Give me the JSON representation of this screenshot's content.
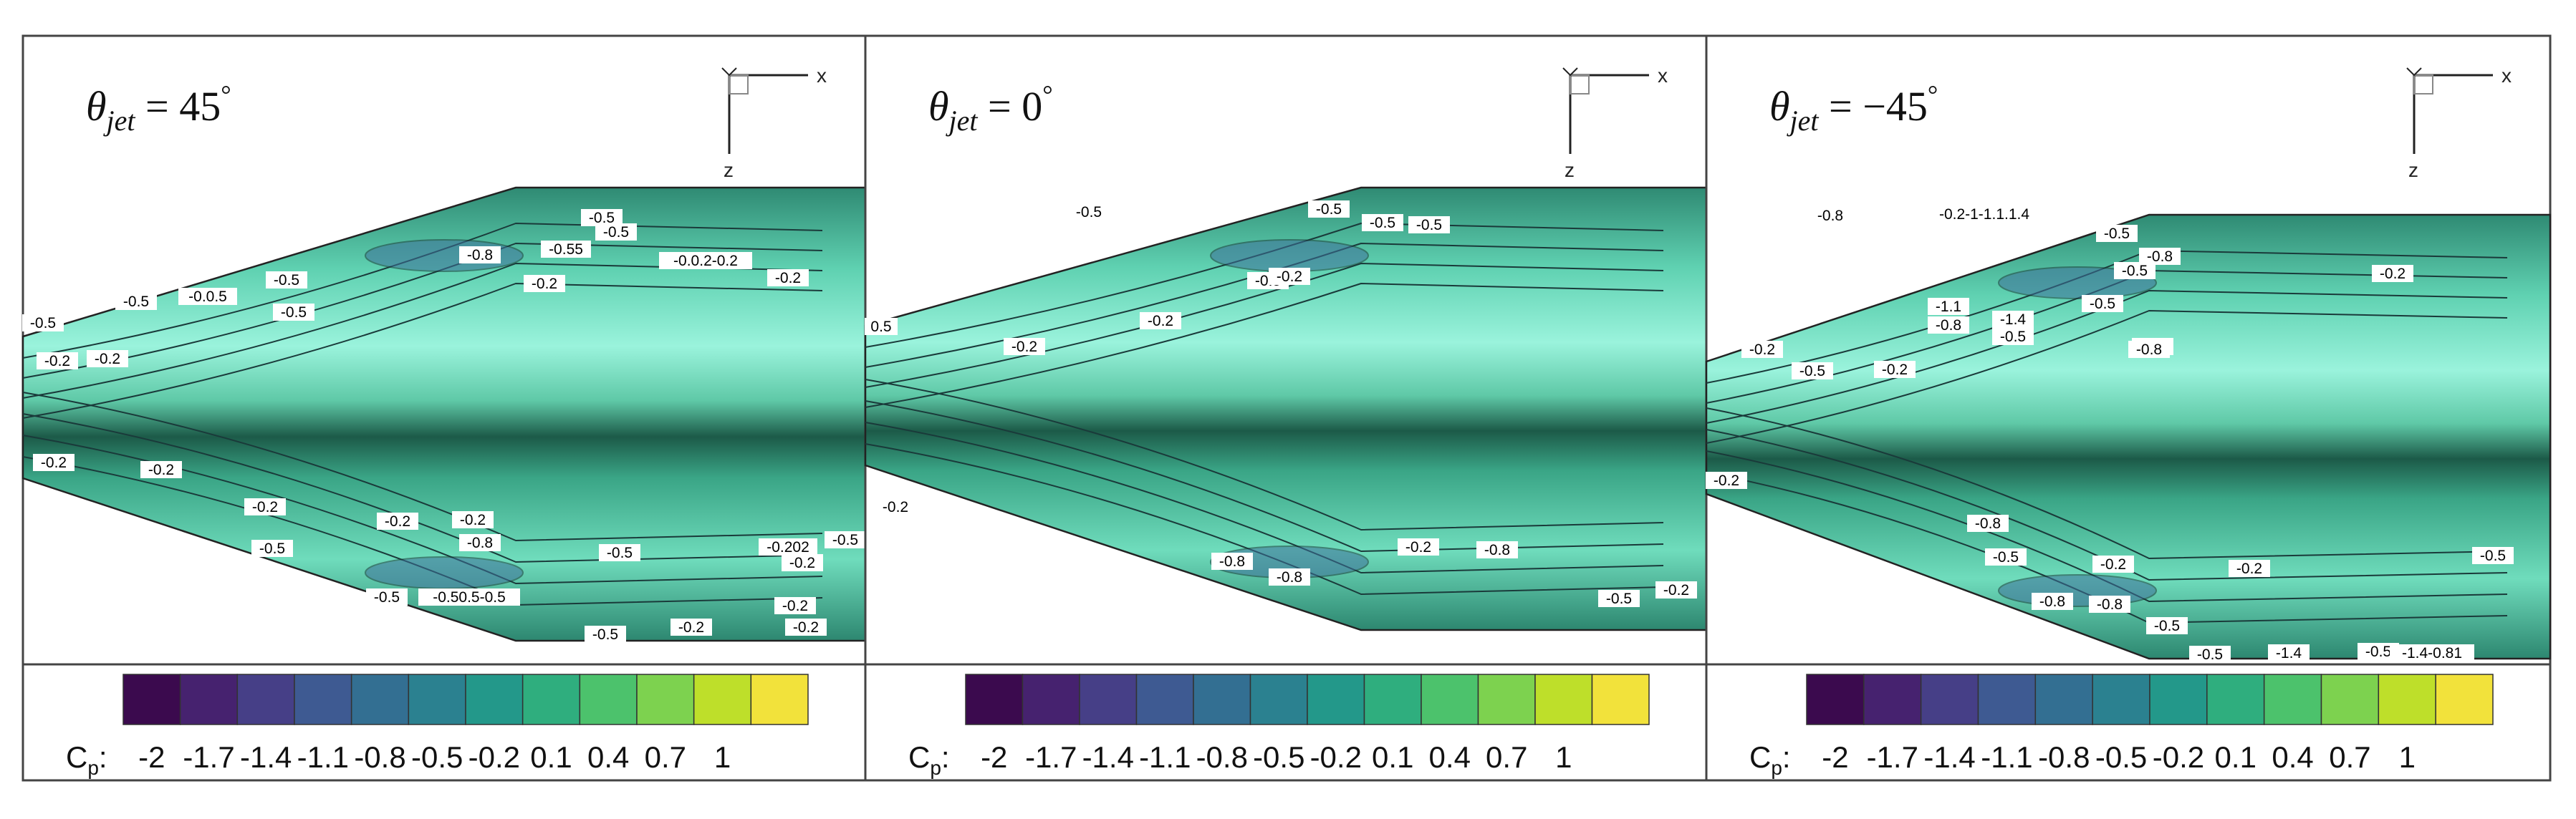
{
  "figure": {
    "panels": [
      {
        "title_lhs": "θ",
        "title_sub": "jet",
        "title_rhs": " = 45",
        "title_deg": "°",
        "contour_labels": [
          "-0.5",
          "-0.5",
          "-0.5",
          "-0.0.5",
          "-0.5",
          "-0.5",
          "-0.8",
          "-0.55",
          "-0.5",
          "-0.2",
          "-0.0.2-0.2",
          "-0.2",
          "-0.2",
          "-0.2",
          "-0.2",
          "-0.2",
          "-0.2",
          "-0.2",
          "-0.2",
          "-0.8",
          "-0.5",
          "-0.5",
          "-0.50.5-0.5",
          "-0.5",
          "-0.202",
          "-0.5",
          "-0.5",
          "-0.2",
          "-0.2",
          "-0.2",
          "-0.2"
        ]
      },
      {
        "title_lhs": "θ",
        "title_sub": "jet",
        "title_rhs": " = 0",
        "title_deg": "°",
        "contour_labels": [
          "-0.5",
          "-0.5",
          "-0.5",
          "0.5",
          "-0.2",
          "-0.2",
          "-0.5",
          "-0.2",
          "-0.5",
          "-0.8",
          "-0.8",
          "-0.8",
          "-0.2",
          "-0.5",
          "-0.2",
          "-0.2"
        ]
      },
      {
        "title_lhs": "θ",
        "title_sub": "jet",
        "title_rhs": " = −45",
        "title_deg": "°",
        "contour_labels": [
          "-0.8",
          "-0.2-1-1.1.1.4",
          "-0.5",
          "-0.8",
          "-1.1",
          "-0.8",
          "-0.5",
          "-0.2",
          "-0.2",
          "-0.5",
          "-1.4",
          "-0.5",
          "-0.2",
          "-0.2",
          "-0.5",
          "-0.8",
          "-0.2",
          "-0.8",
          "-0.5",
          "-0.2",
          "-0.8",
          "-0.8",
          "-0.5",
          "-0.5",
          "-0.5",
          "-1.4",
          "-1.4-0.81",
          "-0.2",
          "-0.5"
        ]
      }
    ],
    "axes_triad": {
      "x": "x",
      "z": "z"
    },
    "colorbar": {
      "label_main": "C",
      "label_sub": "p",
      "label_colon": ":",
      "ticks": [
        "-2",
        "-1.7",
        "-1.4",
        "-1.1",
        "-0.8",
        "-0.5",
        "-0.2",
        "0.1",
        "0.4",
        "0.7",
        "1"
      ],
      "colors": [
        "#3b0a4e",
        "#46226f",
        "#463f87",
        "#3e5a92",
        "#336f92",
        "#2b8190",
        "#23988a",
        "#2fae7e",
        "#4cc26c",
        "#7dd24f",
        "#bedf2a",
        "#f2e23b"
      ]
    },
    "surface_colors": {
      "light": "#8ef0d6",
      "mid": "#41c4a2",
      "dark": "#1d6450"
    }
  }
}
